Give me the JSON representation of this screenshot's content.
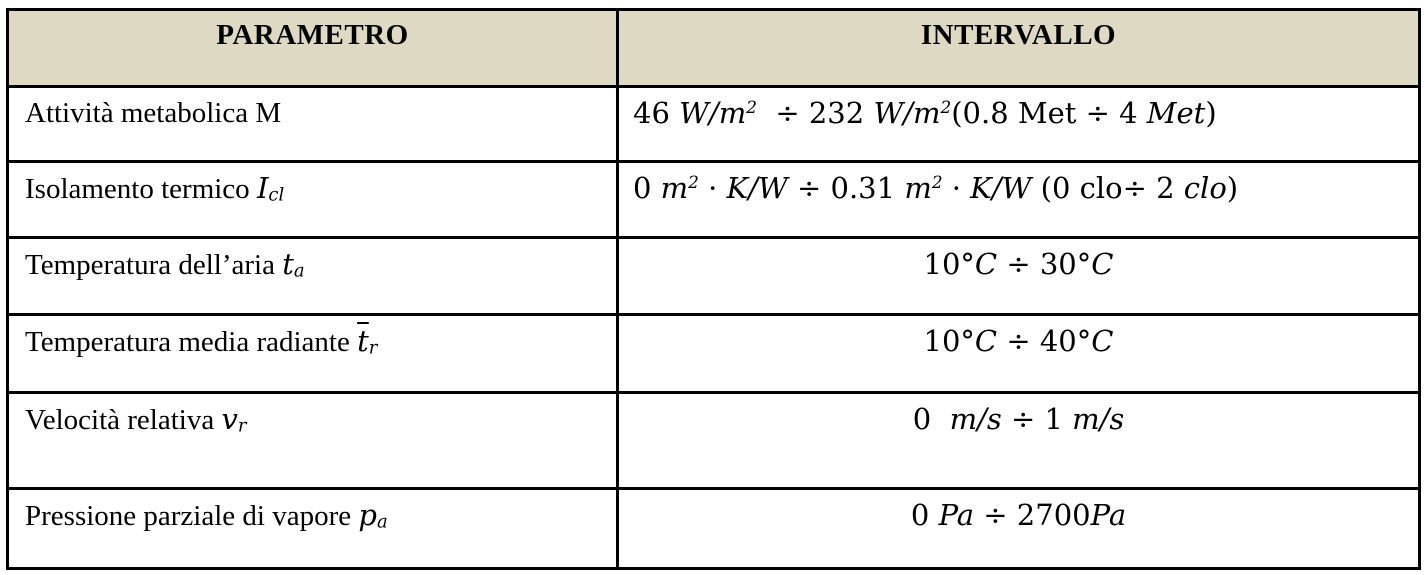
{
  "colors": {
    "header_bg": "#ddd9c3",
    "border": "#000000",
    "text": "#000000",
    "page_bg": "#ffffff"
  },
  "table": {
    "header": {
      "bg": "#ddd9c3",
      "columns": [
        "PARAMETRO",
        "INTERVALLO"
      ]
    },
    "rows": [
      {
        "parametro": [
          {
            "t": "Attività metabolica M",
            "s": "text"
          }
        ],
        "intervallo": [
          {
            "t": "46 ",
            "s": "math"
          },
          {
            "t": "W/m",
            "s": "mathit"
          },
          {
            "t": "2",
            "s": "supit"
          },
          {
            "t": "  ÷ 232 ",
            "s": "math"
          },
          {
            "t": "W/m",
            "s": "mathit"
          },
          {
            "t": "2",
            "s": "supit"
          },
          {
            "t": "(0.8 Met ÷ 4 ",
            "s": "math"
          },
          {
            "t": "Met",
            "s": "mathit"
          },
          {
            "t": ")",
            "s": "math"
          }
        ],
        "intervallo_align": "left"
      },
      {
        "parametro": [
          {
            "t": "Isolamento termico ",
            "s": "text"
          },
          {
            "t": "I",
            "s": "mathit"
          },
          {
            "t": "cl",
            "s": "subit"
          }
        ],
        "intervallo": [
          {
            "t": "0 ",
            "s": "math"
          },
          {
            "t": "m",
            "s": "mathit"
          },
          {
            "t": "2",
            "s": "supit"
          },
          {
            "t": " · ",
            "s": "math"
          },
          {
            "t": "K/W",
            "s": "mathit"
          },
          {
            "t": " ÷ 0.31 ",
            "s": "math"
          },
          {
            "t": "m",
            "s": "mathit"
          },
          {
            "t": "2",
            "s": "supit"
          },
          {
            "t": " · ",
            "s": "math"
          },
          {
            "t": "K/W",
            "s": "mathit"
          },
          {
            "t": " (0 clo÷ 2 ",
            "s": "math"
          },
          {
            "t": "clo",
            "s": "mathit"
          },
          {
            "t": ")",
            "s": "math"
          }
        ],
        "intervallo_align": "left"
      },
      {
        "parametro": [
          {
            "t": "Temperatura dell’aria ",
            "s": "text"
          },
          {
            "t": "t",
            "s": "mathit"
          },
          {
            "t": "a",
            "s": "subit"
          }
        ],
        "intervallo": [
          {
            "t": "10°",
            "s": "math"
          },
          {
            "t": "C",
            "s": "mathit"
          },
          {
            "t": " ÷ 30°",
            "s": "math"
          },
          {
            "t": "C",
            "s": "mathit"
          }
        ],
        "intervallo_align": "center"
      },
      {
        "parametro": [
          {
            "t": "Temperatura media radiante ",
            "s": "text"
          },
          {
            "t": "t",
            "s": "overbarit"
          },
          {
            "t": "r",
            "s": "subit"
          }
        ],
        "intervallo": [
          {
            "t": "10°",
            "s": "math"
          },
          {
            "t": "C",
            "s": "mathit"
          },
          {
            "t": " ÷ 40°",
            "s": "math"
          },
          {
            "t": "C",
            "s": "mathit"
          }
        ],
        "intervallo_align": "center"
      },
      {
        "parametro": [
          {
            "t": "Velocità relativa ",
            "s": "text"
          },
          {
            "t": "v",
            "s": "mathit"
          },
          {
            "t": "r",
            "s": "subit"
          }
        ],
        "intervallo": [
          {
            "t": "0  ",
            "s": "math"
          },
          {
            "t": "m/s",
            "s": "mathit"
          },
          {
            "t": " ÷ 1 ",
            "s": "math"
          },
          {
            "t": "m/s",
            "s": "mathit"
          }
        ],
        "intervallo_align": "center"
      },
      {
        "parametro": [
          {
            "t": "Pressione parziale di vapore ",
            "s": "text"
          },
          {
            "t": "p",
            "s": "mathit"
          },
          {
            "t": "a",
            "s": "subit"
          }
        ],
        "intervallo": [
          {
            "t": "0 ",
            "s": "math"
          },
          {
            "t": "Pa",
            "s": "mathit"
          },
          {
            "t": " ÷ 2700",
            "s": "math"
          },
          {
            "t": "Pa",
            "s": "mathit"
          }
        ],
        "intervallo_align": "center"
      }
    ]
  }
}
